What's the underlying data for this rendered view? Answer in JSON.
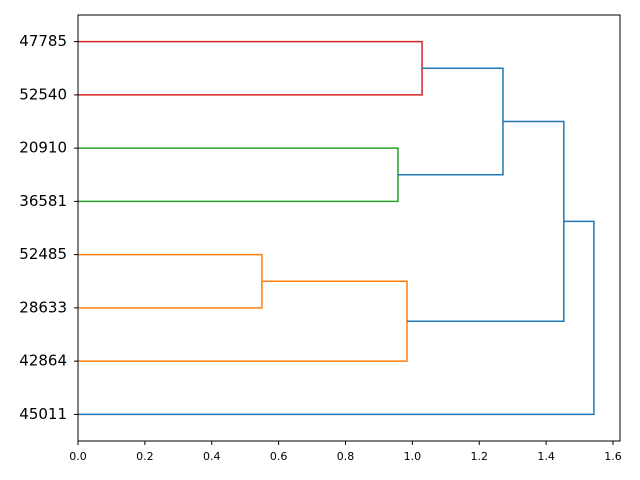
{
  "chart_data": {
    "type": "dendrogram",
    "leaves": [
      "47785",
      "52540",
      "20910",
      "36581",
      "52485",
      "28633",
      "42864",
      "45011"
    ],
    "merges": [
      {
        "children": [
          0,
          1
        ],
        "height": 1.029,
        "color": "#d62728"
      },
      {
        "children": [
          2,
          3
        ],
        "height": 0.957,
        "color": "#2ca02c"
      },
      {
        "children": [
          4,
          5
        ],
        "height": 0.55,
        "color": "#ff7f0e"
      },
      {
        "children": [
          10,
          6
        ],
        "height": 0.984,
        "color": "#ff7f0e"
      },
      {
        "children": [
          8,
          9
        ],
        "height": 1.271,
        "color": "#1f77b4"
      },
      {
        "children": [
          12,
          11
        ],
        "height": 1.453,
        "color": "#1f77b4"
      },
      {
        "children": [
          13,
          7
        ],
        "height": 1.543,
        "color": "#1f77b4"
      }
    ],
    "xlim": [
      0,
      1.621
    ],
    "xticks": [
      {
        "value": 0,
        "label": "0.0"
      },
      0.2,
      0.4,
      0.6,
      0.8,
      {
        "value": 1,
        "label": "1.0"
      },
      1.2,
      1.4,
      1.6
    ]
  }
}
